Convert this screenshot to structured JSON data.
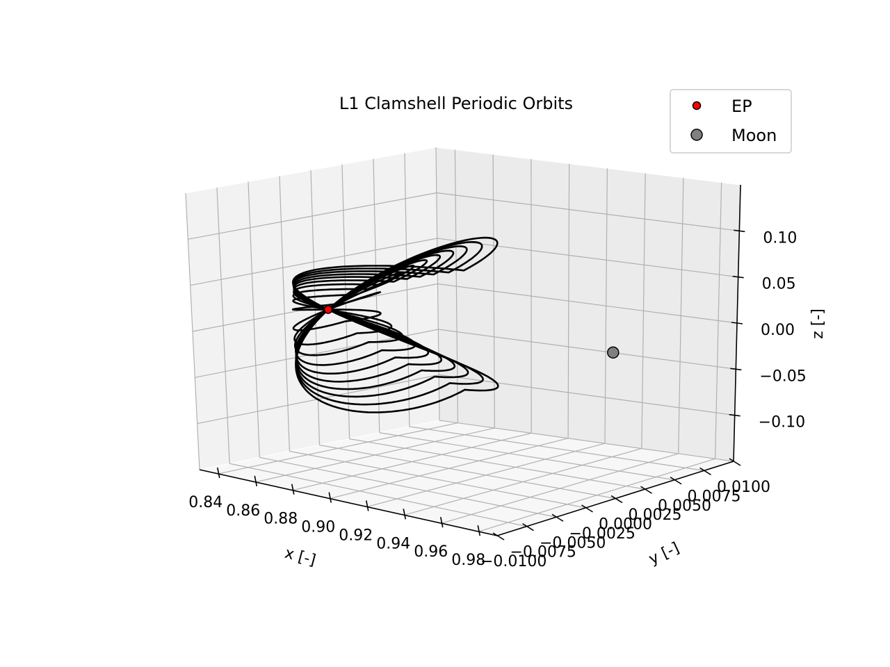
{
  "chart_data": {
    "type": "line3d",
    "title": "L1 Clamshell Periodic Orbits",
    "xlabel": "x [-]",
    "ylabel": "y [-]",
    "zlabel": "z [-]",
    "xlim": [
      0.83,
      0.99
    ],
    "ylim": [
      -0.01,
      0.01
    ],
    "zlim": [
      -0.15,
      0.15
    ],
    "x_ticks": [
      "0.84",
      "0.86",
      "0.88",
      "0.90",
      "0.92",
      "0.94",
      "0.96",
      "0.98"
    ],
    "y_ticks": [
      "−0.0100",
      "−0.0075",
      "−0.0050",
      "−0.0025",
      "0.0000",
      "0.0025",
      "0.0050",
      "0.0075",
      "0.0100"
    ],
    "z_ticks": [
      "−0.10",
      "−0.05",
      "0.00",
      "0.05",
      "0.10"
    ],
    "grid": true,
    "legend": {
      "placement": "top-right",
      "entries": [
        {
          "label": "EP",
          "color": "#ff0000"
        },
        {
          "label": "Moon",
          "color": "#808080"
        }
      ]
    },
    "equilibrium_point": {
      "label": "EP",
      "x": 0.8369,
      "y": 0.0,
      "z": 0.0,
      "color": "#ff0000"
    },
    "moon": {
      "label": "Moon",
      "x": 0.9878,
      "y": 0.0,
      "z": 0.0,
      "color": "#808080"
    },
    "orbit_color": "#000000",
    "orbits": [
      {
        "x_max": 0.846,
        "z_max": 0.018
      },
      {
        "x_max": 0.852,
        "z_max": 0.038
      },
      {
        "x_max": 0.858,
        "z_max": 0.052
      },
      {
        "x_max": 0.865,
        "z_max": 0.064
      },
      {
        "x_max": 0.872,
        "z_max": 0.074
      },
      {
        "x_max": 0.879,
        "z_max": 0.083
      },
      {
        "x_max": 0.886,
        "z_max": 0.091
      },
      {
        "x_max": 0.893,
        "z_max": 0.099
      },
      {
        "x_max": 0.901,
        "z_max": 0.107
      },
      {
        "x_max": 0.909,
        "z_max": 0.115
      }
    ]
  }
}
